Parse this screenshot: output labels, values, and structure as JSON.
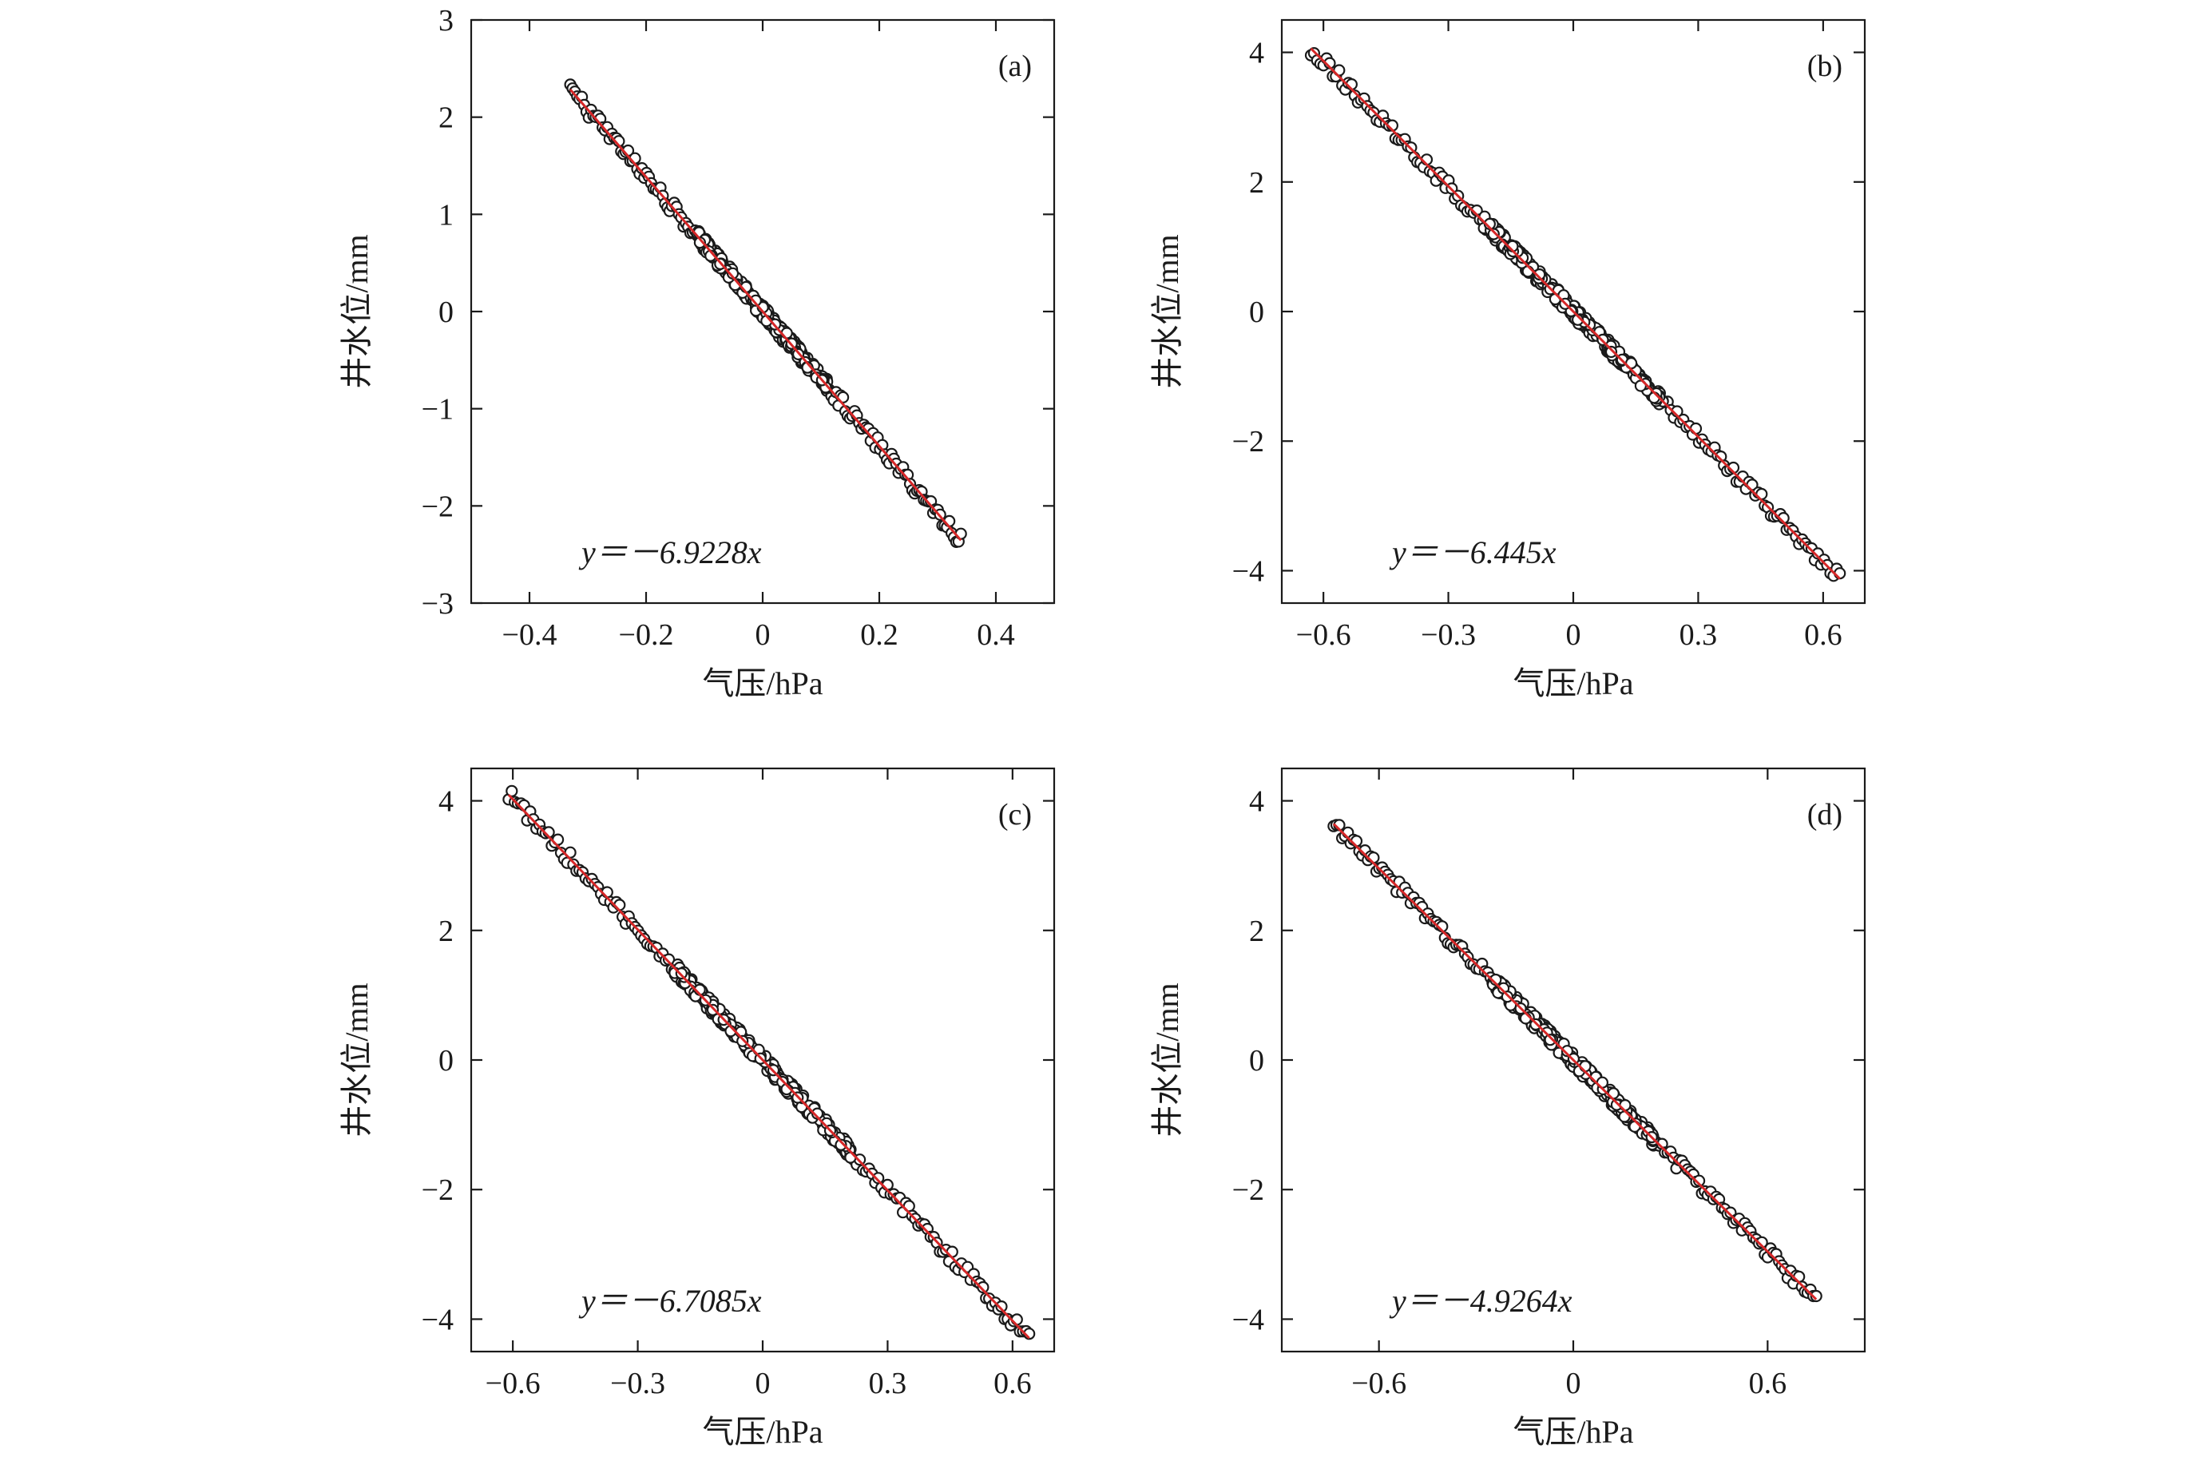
{
  "chart_data": [
    {
      "type": "scatter",
      "panel_label": "(a)",
      "xlabel": "气压/hPa",
      "ylabel": "井水位/mm",
      "xlim": [
        -0.5,
        0.5
      ],
      "ylim": [
        -3,
        3
      ],
      "xticks": [
        -0.4,
        -0.2,
        0,
        0.2,
        0.4
      ],
      "xtick_labels": [
        "−0.4",
        "−0.2",
        "0",
        "0.2",
        "0.4"
      ],
      "yticks": [
        -3,
        -2,
        -1,
        0,
        1,
        2,
        3
      ],
      "ytick_labels": [
        "−3",
        "−2",
        "−1",
        "0",
        "1",
        "2",
        "3"
      ],
      "fit": {
        "slope": -6.9228,
        "equation": "y＝－6.9228x"
      },
      "x_range": [
        -0.33,
        0.34
      ],
      "color_points": "#1a1a1a",
      "color_fit": "#d62728"
    },
    {
      "type": "scatter",
      "panel_label": "(b)",
      "xlabel": "气压/hPa",
      "ylabel": "井水位/mm",
      "xlim": [
        -0.7,
        0.7
      ],
      "ylim": [
        -4.5,
        4.5
      ],
      "xticks": [
        -0.6,
        -0.3,
        0,
        0.3,
        0.6
      ],
      "xtick_labels": [
        "−0.6",
        "−0.3",
        "0",
        "0.3",
        "0.6"
      ],
      "yticks": [
        -4,
        -2,
        0,
        2,
        4
      ],
      "ytick_labels": [
        "−4",
        "−2",
        "0",
        "2",
        "4"
      ],
      "fit": {
        "slope": -6.445,
        "equation": "y＝－6.445x"
      },
      "x_range": [
        -0.63,
        0.64
      ],
      "color_points": "#1a1a1a",
      "color_fit": "#d62728"
    },
    {
      "type": "scatter",
      "panel_label": "(c)",
      "xlabel": "气压/hPa",
      "ylabel": "井水位/mm",
      "xlim": [
        -0.7,
        0.7
      ],
      "ylim": [
        -4.5,
        4.5
      ],
      "xticks": [
        -0.6,
        -0.3,
        0,
        0.3,
        0.6
      ],
      "xtick_labels": [
        "−0.6",
        "−0.3",
        "0",
        "0.3",
        "0.6"
      ],
      "yticks": [
        -4,
        -2,
        0,
        2,
        4
      ],
      "ytick_labels": [
        "−4",
        "−2",
        "0",
        "2",
        "4"
      ],
      "fit": {
        "slope": -6.7085,
        "equation": "y＝－6.7085x"
      },
      "x_range": [
        -0.61,
        0.64
      ],
      "color_points": "#1a1a1a",
      "color_fit": "#d62728"
    },
    {
      "type": "scatter",
      "panel_label": "(d)",
      "xlabel": "气压/hPa",
      "ylabel": "井水位/mm",
      "xlim": [
        -0.9,
        0.9
      ],
      "ylim": [
        -4.5,
        4.5
      ],
      "xticks": [
        -0.6,
        0,
        0.6
      ],
      "xtick_labels": [
        "−0.6",
        "0",
        "0.6"
      ],
      "yticks": [
        -4,
        -2,
        0,
        2,
        4
      ],
      "ytick_labels": [
        "−4",
        "−2",
        "0",
        "2",
        "4"
      ],
      "fit": {
        "slope": -4.9264,
        "equation": "y＝－4.9264x"
      },
      "x_range": [
        -0.74,
        0.75
      ],
      "color_points": "#1a1a1a",
      "color_fit": "#d62728"
    }
  ]
}
